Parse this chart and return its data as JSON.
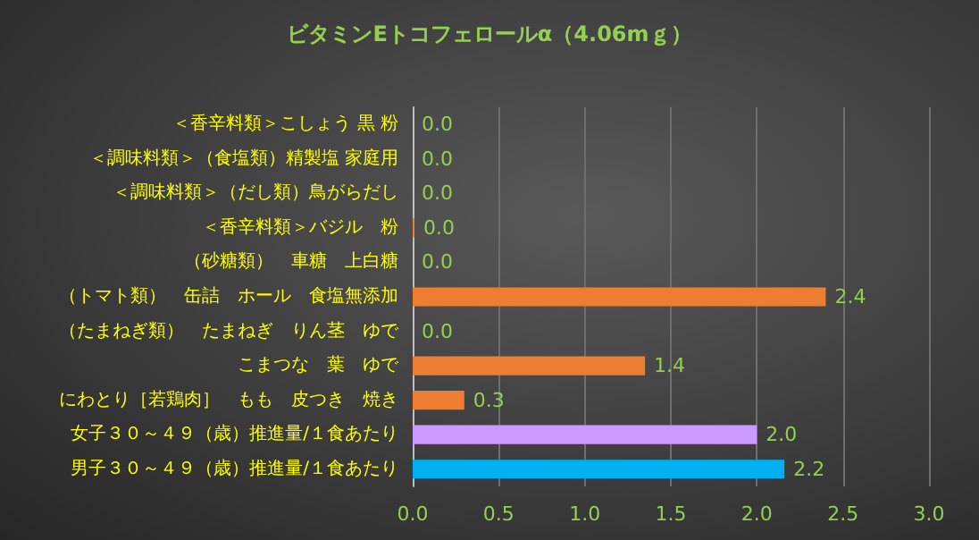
{
  "chart_data": {
    "type": "bar",
    "orientation": "horizontal",
    "title": "ビタミンEトコフェロールα（4.06mｇ）",
    "categories": [
      "＜香辛料類＞こしょう 黒 粉",
      "＜調味料類＞（食塩類）精製塩 家庭用",
      "＜調味料類＞（だし類）鳥がらだし",
      "＜香辛料類＞バジル　粉",
      "（砂糖類）　車糖　上白糖",
      "（トマト類）　缶詰　ホール　食塩無添加",
      "（たまねぎ類）　たまねぎ　りん茎　ゆで",
      "こまつな　葉　ゆで",
      "にわとり［若鶏肉］　もも　皮つき　焼き",
      "女子３０～４９（歳）推進量/１食あたり",
      "男子３０～４９（歳）推進量/１食あたり"
    ],
    "values": [
      0,
      0,
      0,
      0.01,
      0,
      2.4,
      0,
      1.35,
      0.3,
      2.0,
      2.16
    ],
    "colors": [
      "#ed7d31",
      "#ed7d31",
      "#ed7d31",
      "#ed7d31",
      "#ed7d31",
      "#ed7d31",
      "#ed7d31",
      "#ed7d31",
      "#ed7d31",
      "#cc99ff",
      "#00b0f0"
    ],
    "value_labels": [
      "0.0",
      "0.0",
      "0.0",
      "0.0",
      "0.0",
      "2.4",
      "0.0",
      "1.4",
      "0.3",
      "2.0",
      "2.2"
    ],
    "xlim": [
      0,
      3
    ],
    "xticks": [
      {
        "value": 0,
        "label": "0.0"
      },
      {
        "value": 0.5,
        "label": "0.5"
      },
      {
        "value": 1,
        "label": "1.0"
      },
      {
        "value": 1.5,
        "label": "1.5"
      },
      {
        "value": 2,
        "label": "2.0"
      },
      {
        "value": 2.5,
        "label": "2.5"
      },
      {
        "value": 3,
        "label": "3.0"
      }
    ],
    "grid": "x"
  }
}
